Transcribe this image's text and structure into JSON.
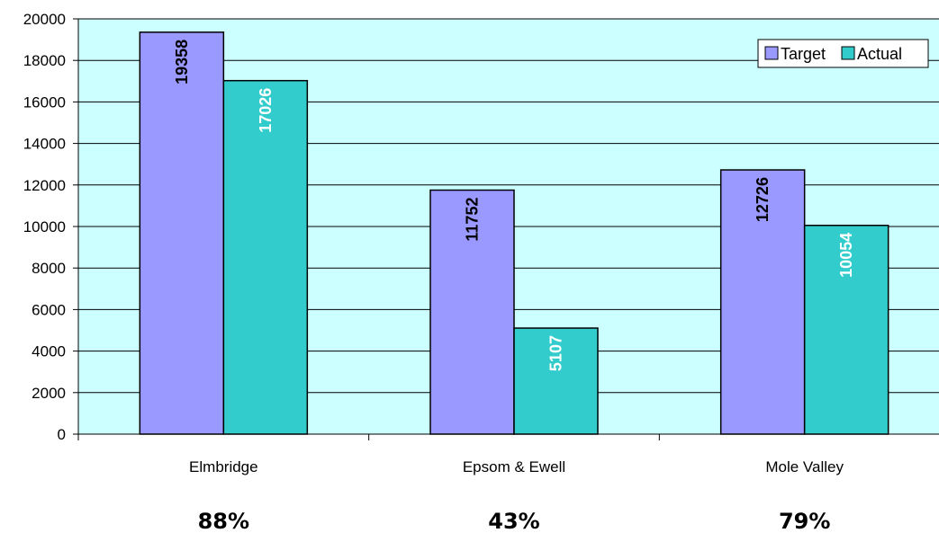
{
  "chart_data": {
    "type": "bar",
    "categories": [
      "Elmbridge",
      "Epsom & Ewell",
      "Mole Valley"
    ],
    "series": [
      {
        "name": "Target",
        "values": [
          19358,
          11752,
          12726
        ],
        "color": "#9999ff",
        "label_color": "#000000"
      },
      {
        "name": "Actual",
        "values": [
          17026,
          5107,
          10054
        ],
        "color": "#33cccc",
        "label_color": "#ffffff"
      }
    ],
    "ylim": [
      0,
      20000
    ],
    "yticks": [
      "0",
      "2000",
      "4000",
      "6000",
      "8000",
      "10000",
      "12000",
      "14000",
      "16000",
      "18000",
      "20000"
    ],
    "percentages": [
      "88%",
      "43%",
      "79%"
    ],
    "legend_position": "top-right",
    "plot_background": "#ccffff",
    "grid": true
  }
}
